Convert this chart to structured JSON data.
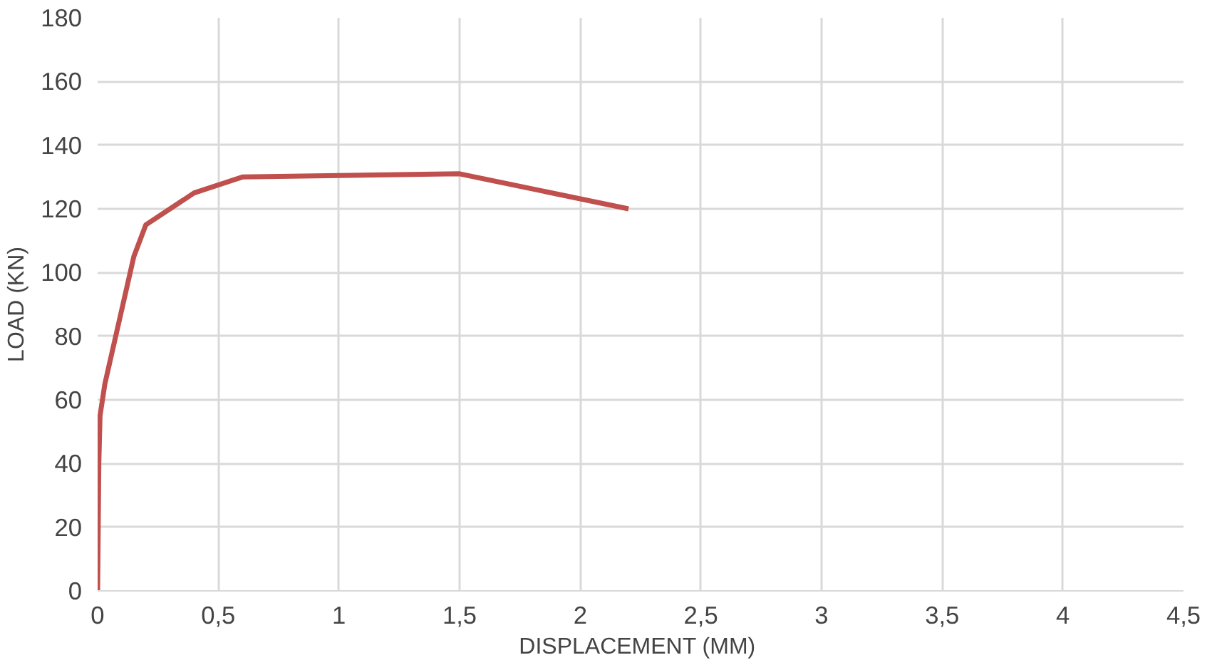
{
  "chart_data": {
    "type": "line",
    "xlabel": "DISPLACEMENT  (MM)",
    "ylabel": "LOAD (KN)",
    "x": [
      0,
      0.005,
      0.01,
      0.03,
      0.15,
      0.2,
      0.4,
      0.6,
      1.5,
      2.2
    ],
    "series": [
      {
        "color": "#c0504d",
        "values": [
          0,
          40,
          55,
          65,
          105,
          115,
          125,
          130,
          131,
          120
        ]
      }
    ],
    "xlim": [
      0,
      4.5
    ],
    "ylim": [
      0,
      180
    ],
    "xticks": [
      0,
      {
        "value": 0.5,
        "label": "0,5"
      },
      1,
      {
        "value": 1.5,
        "label": "1,5"
      },
      2,
      {
        "value": 2.5,
        "label": "2,5"
      },
      3,
      {
        "value": 3.5,
        "label": "3,5"
      },
      4,
      {
        "value": 4.5,
        "label": "4,5"
      }
    ],
    "yticks": [
      0,
      20,
      40,
      60,
      80,
      100,
      120,
      140,
      160,
      180
    ],
    "grid": true,
    "marker": "none",
    "line_style": "solid"
  }
}
